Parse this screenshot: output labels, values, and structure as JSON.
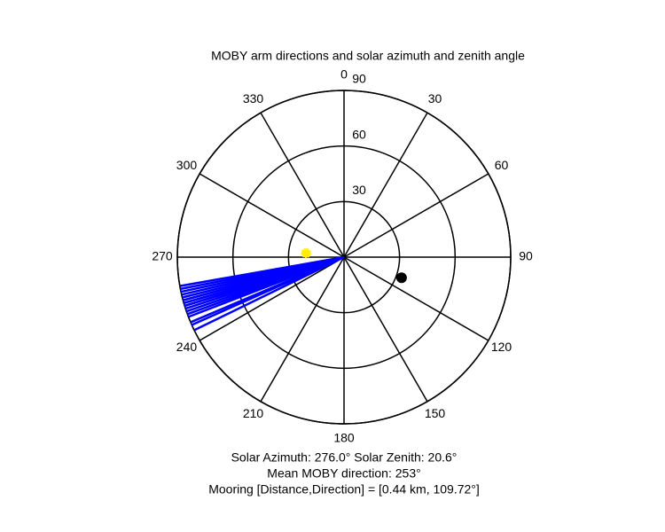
{
  "chart_data": {
    "type": "polar",
    "title": "MOBY arm directions and solar azimuth and zenith angle",
    "rlim": [
      0,
      90
    ],
    "rticks": [
      30,
      60,
      90
    ],
    "theta_ticks": [
      0,
      30,
      60,
      90,
      120,
      150,
      180,
      210,
      240,
      270,
      300,
      330
    ],
    "arm_directions": {
      "color": "#0000ff",
      "values": [
        244,
        246,
        247,
        249,
        250,
        251,
        252,
        253,
        253,
        254,
        254,
        255,
        255,
        256,
        257,
        258,
        259,
        260
      ]
    },
    "solar": {
      "color": "#ffee00",
      "azimuth": 276.0,
      "zenith": 20.6
    },
    "mooring": {
      "color": "#000000",
      "azimuth": 109.72,
      "r": 33
    },
    "annotations": [
      "Solar Azimuth: 276.0° Solar Zenith: 20.6°",
      "Mean MOBY direction: 253°",
      "Mooring [Distance,Direction] = [0.44 km, 109.72°]"
    ]
  }
}
